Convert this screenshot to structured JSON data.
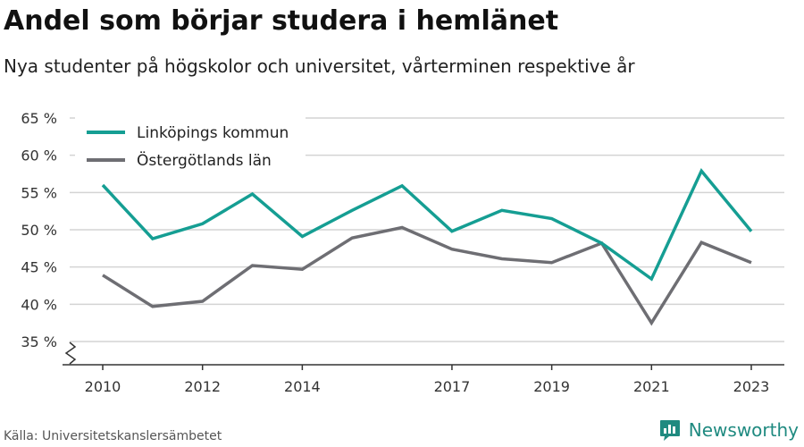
{
  "header": {
    "title": "Andel som börjar studera i hemlänet",
    "subtitle": "Nya studenter på högskolor och universitet, vårterminen respektive år"
  },
  "footer": {
    "source": "Källa: Universitetskanslersämbetet",
    "brand": "Newsworthy"
  },
  "colors": {
    "linkoping": "#159e93",
    "ostergotland": "#6e6e73",
    "grid": "#d4d4d4",
    "axis": "#333333",
    "brand": "#1f8a80"
  },
  "chart_data": {
    "type": "line",
    "title": "Andel som börjar studera i hemlänet",
    "subtitle": "Nya studenter på högskolor och universitet, vårterminen respektive år",
    "x": [
      2010,
      2011,
      2012,
      2013,
      2014,
      2015,
      2016,
      2017,
      2018,
      2019,
      2020,
      2021,
      2022,
      2023
    ],
    "x_ticks": [
      2010,
      2012,
      2014,
      2017,
      2019,
      2021,
      2023
    ],
    "y_ticks": [
      35,
      40,
      45,
      50,
      55,
      60,
      65
    ],
    "y_tick_labels": [
      "35 %",
      "40 %",
      "45 %",
      "50 %",
      "55 %",
      "60 %",
      "65 %"
    ],
    "ylim": [
      35,
      65
    ],
    "y_axis_break": true,
    "grid": true,
    "legend_position": "top-left",
    "series": [
      {
        "name": "Linköpings kommun",
        "color": "#159e93",
        "values": [
          56.0,
          48.8,
          50.8,
          54.8,
          49.1,
          52.6,
          55.9,
          49.8,
          52.6,
          51.5,
          48.2,
          43.4,
          57.9,
          49.8
        ]
      },
      {
        "name": "Östergötlands län",
        "color": "#6e6e73",
        "values": [
          43.9,
          39.7,
          40.4,
          45.2,
          44.7,
          48.9,
          50.3,
          47.4,
          46.1,
          45.6,
          48.2,
          37.5,
          48.3,
          45.6
        ]
      }
    ]
  }
}
